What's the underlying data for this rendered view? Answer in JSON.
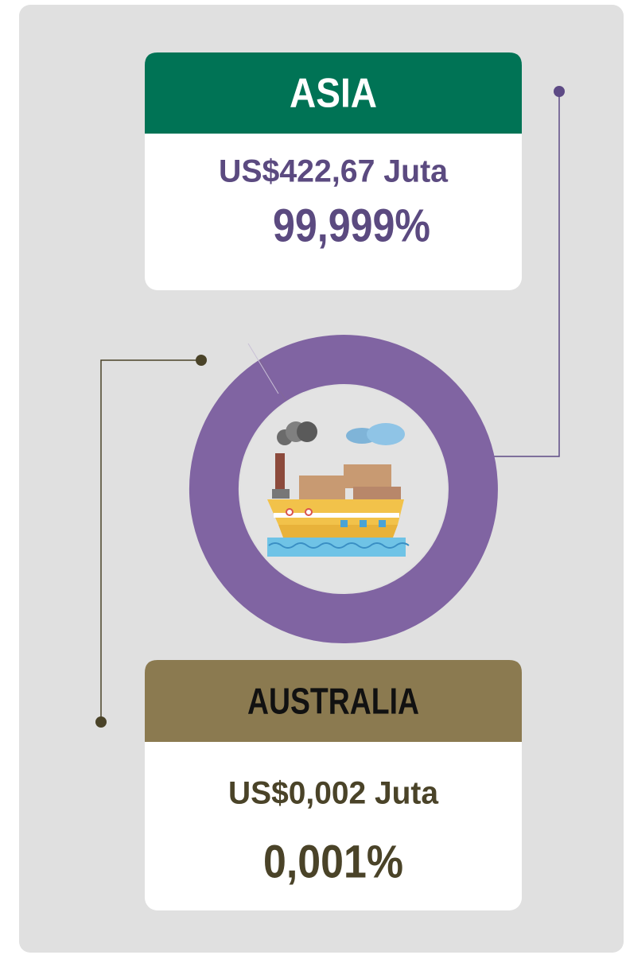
{
  "chart_data": {
    "type": "donut",
    "categories": [
      "ASIA",
      "AUSTRALIA"
    ],
    "values": [
      99.999,
      0.001
    ],
    "value_labels": [
      "99,999%",
      "0,001%"
    ],
    "amount_labels": [
      "US$422,67 Juta",
      "US$0,002 Juta"
    ],
    "colors": [
      "#8064a2",
      "#8b7a50"
    ],
    "header_colors": [
      "#007355",
      "#8b7a50"
    ],
    "text_colors": [
      "#5b4a80",
      "#4a4328"
    ]
  }
}
